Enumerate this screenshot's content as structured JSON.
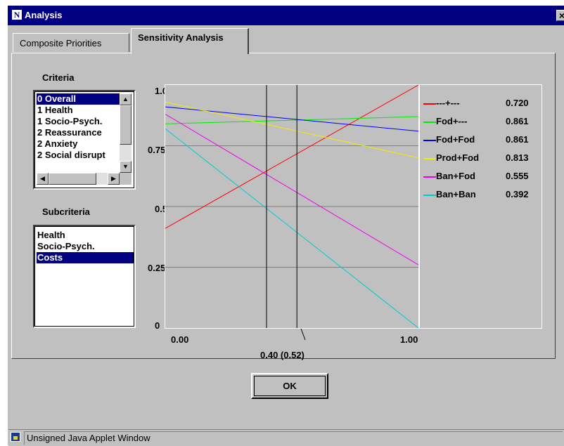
{
  "window": {
    "title": "Analysis",
    "icon": "N",
    "close": "×"
  },
  "tabs": [
    {
      "label": "Composite Priorities",
      "active": false
    },
    {
      "label": "Sensitivity Analysis",
      "active": true
    }
  ],
  "criteria": {
    "label": "Criteria",
    "items": [
      "0 Overall",
      "1 Health",
      "1 Socio-Psych.",
      "2 Reassurance",
      "2 Anxiety",
      "2 Social disrupt"
    ],
    "selected_index": 0
  },
  "subcriteria": {
    "label": "Subcriteria",
    "items": [
      "Health",
      "Socio-Psych.",
      "Costs"
    ],
    "selected_index": 2
  },
  "chart_data": {
    "type": "line",
    "x_range": [
      0,
      1
    ],
    "y_range": [
      0,
      1
    ],
    "y_ticks": [
      "1.0",
      "0.75",
      "0.5",
      "0.25",
      "0"
    ],
    "x_ticks": [
      "0.00",
      "1.00"
    ],
    "marker_label": "0.40 (0.52)",
    "marker_lines": [
      0.4,
      0.52
    ],
    "series": [
      {
        "name": "---+---",
        "value": "0.720",
        "color": "#ff0000",
        "y0": 0.41,
        "y1": 1.0
      },
      {
        "name": "Fod+---",
        "value": "0.861",
        "color": "#00ee00",
        "y0": 0.84,
        "y1": 0.87
      },
      {
        "name": "Fod+Fod",
        "value": "0.861",
        "color": "#0000ff",
        "y0": 0.91,
        "y1": 0.81
      },
      {
        "name": "Prod+Fod",
        "value": "0.813",
        "color": "#eeee00",
        "y0": 0.93,
        "y1": 0.7
      },
      {
        "name": "Ban+Fod",
        "value": "0.555",
        "color": "#ee00ee",
        "y0": 0.88,
        "y1": 0.26
      },
      {
        "name": "Ban+Ban",
        "value": "0.392",
        "color": "#00cccc",
        "y0": 0.82,
        "y1": 0.0
      }
    ]
  },
  "buttons": {
    "ok": "OK"
  },
  "status": {
    "text": "Unsigned Java Applet Window"
  },
  "icons": {
    "title": "netscape-icon",
    "status": "lock-icon"
  }
}
